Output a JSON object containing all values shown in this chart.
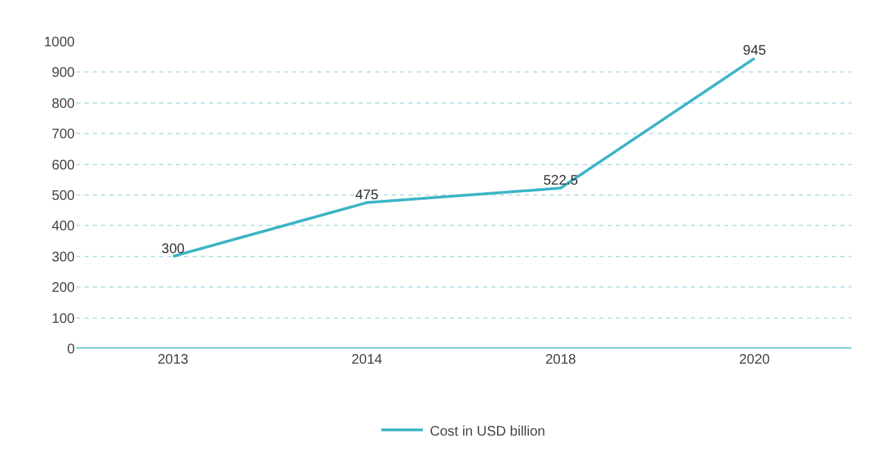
{
  "chart_data": {
    "type": "line",
    "categories": [
      "2013",
      "2014",
      "2018",
      "2020"
    ],
    "series": [
      {
        "name": "Cost in USD billion",
        "color": "#3cb4c6",
        "values": [
          300,
          475,
          522.5,
          945
        ]
      }
    ],
    "ylim": [
      0,
      1000
    ],
    "yticks": [
      0,
      100,
      200,
      300,
      400,
      500,
      600,
      700,
      800,
      900,
      1000
    ],
    "grid": "y",
    "legend": "bottom",
    "data_labels": true,
    "marker": "none",
    "line_style": "solid"
  }
}
